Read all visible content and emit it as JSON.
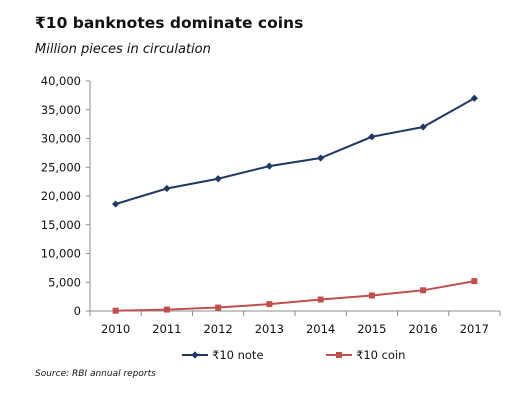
{
  "title": "₹10 banknotes dominate coins",
  "subtitle": "Million pieces in circulation",
  "source": "Source: RBI annual reports",
  "chart_data": {
    "type": "line",
    "title": "₹10 banknotes dominate coins",
    "subtitle": "Million pieces in circulation",
    "x": [
      "2010",
      "2011",
      "2012",
      "2013",
      "2014",
      "2015",
      "2016",
      "2017"
    ],
    "ylim": [
      0,
      40000
    ],
    "yticks": [
      "0",
      "5,000",
      "10,000",
      "15,000",
      "20,000",
      "25,000",
      "30,000",
      "35,000",
      "40,000"
    ],
    "ytick_values": [
      0,
      5000,
      10000,
      15000,
      20000,
      25000,
      30000,
      35000,
      40000
    ],
    "grid": false,
    "legend_position": "bottom",
    "series": [
      {
        "name": "₹10 note",
        "color": "#1f3864",
        "marker": "diamond",
        "values": [
          18600,
          21300,
          23000,
          25200,
          26600,
          30300,
          32000,
          37000
        ]
      },
      {
        "name": "₹10 coin",
        "color": "#c0504d",
        "marker": "square",
        "values": [
          50,
          250,
          600,
          1200,
          2000,
          2700,
          3600,
          5200
        ]
      }
    ]
  }
}
